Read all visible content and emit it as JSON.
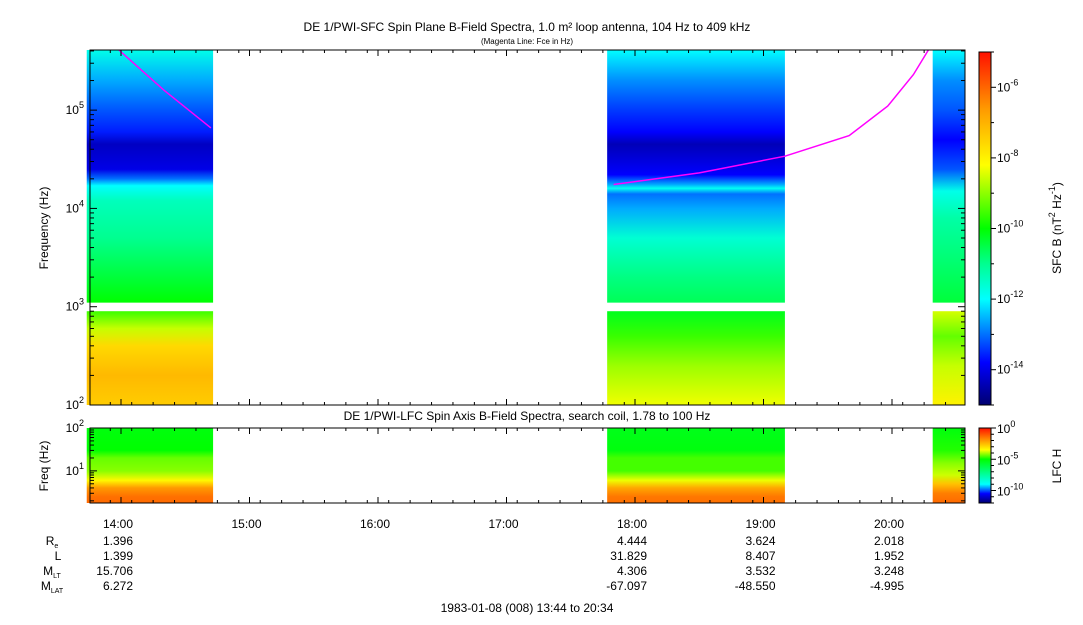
{
  "chart_data": [
    {
      "type": "heatmap",
      "title": "DE 1/PWI-SFC  Spin Plane B-Field Spectra, 1.0 m² loop antenna, 104 Hz to 409 kHz",
      "subtitle": "(Magenta Line: Fce in Hz)",
      "ylabel": "Frequency (Hz)",
      "yscale": "log",
      "ylim": [
        100,
        409000
      ],
      "y_ticks": [
        {
          "base": "10",
          "exp": "2",
          "value": 100
        },
        {
          "base": "10",
          "exp": "3",
          "value": 1000
        },
        {
          "base": "10",
          "exp": "4",
          "value": 10000
        },
        {
          "base": "10",
          "exp": "5",
          "value": 100000
        }
      ],
      "colorbar": {
        "label_main": "SFC B (nT",
        "label_sup1": "2",
        "label_mid": " Hz",
        "label_sup2": "-1",
        "label_end": ")",
        "range_log10": [
          -15,
          -5
        ],
        "ticks": [
          {
            "base": "10",
            "exp": "-6",
            "value": -6
          },
          {
            "base": "10",
            "exp": "-8",
            "value": -8
          },
          {
            "base": "10",
            "exp": "-10",
            "value": -10
          },
          {
            "base": "10",
            "exp": "-12",
            "value": -12
          },
          {
            "base": "10",
            "exp": "-14",
            "value": -14
          }
        ],
        "colors": [
          [
            -15,
            "#000070"
          ],
          [
            -13.8,
            "#0000ff"
          ],
          [
            -12,
            "#00ffff"
          ],
          [
            -11,
            "#00ff90"
          ],
          [
            -10,
            "#00ff00"
          ],
          [
            -8.2,
            "#ffff00"
          ],
          [
            -6.6,
            "#ff9900"
          ],
          [
            -5,
            "#ff1000"
          ]
        ]
      },
      "gap_band_hz": [
        900,
        1100
      ],
      "segments": [
        {
          "start": "13:44",
          "end": "14:43",
          "upper": [
            [
              409000,
              -11.8
            ],
            [
              200000,
              -12.6
            ],
            [
              100000,
              -13.2
            ],
            [
              60000,
              -13.6
            ],
            [
              45000,
              -14.3
            ],
            [
              25000,
              -14
            ],
            [
              20000,
              -13
            ],
            [
              17000,
              -12
            ],
            [
              12000,
              -11.4
            ],
            [
              5000,
              -11
            ],
            [
              2000,
              -10.4
            ],
            [
              1100,
              -10
            ]
          ],
          "lower": [
            [
              900,
              -9.6
            ],
            [
              600,
              -8.6
            ],
            [
              400,
              -7.6
            ],
            [
              200,
              -7.1
            ],
            [
              100,
              -7.4
            ]
          ]
        },
        {
          "start": "17:47",
          "end": "19:10",
          "upper": [
            [
              409000,
              -12
            ],
            [
              200000,
              -12.8
            ],
            [
              100000,
              -13.4
            ],
            [
              60000,
              -13.8
            ],
            [
              45000,
              -14.4
            ],
            [
              22000,
              -13.8
            ],
            [
              17500,
              -12.6
            ],
            [
              16000,
              -11.9
            ],
            [
              14000,
              -13
            ],
            [
              10000,
              -12.6
            ],
            [
              5000,
              -11.6
            ],
            [
              2000,
              -10.9
            ],
            [
              1100,
              -10.6
            ]
          ],
          "lower": [
            [
              900,
              -10.2
            ],
            [
              500,
              -9.6
            ],
            [
              250,
              -8.9
            ],
            [
              100,
              -8.3
            ]
          ]
        },
        {
          "start": "20:19",
          "end": "20:34",
          "upper": [
            [
              409000,
              -12
            ],
            [
              200000,
              -12.8
            ],
            [
              100000,
              -13.2
            ],
            [
              50000,
              -13.8
            ],
            [
              25000,
              -13.2
            ],
            [
              15000,
              -11.8
            ],
            [
              8000,
              -11.2
            ],
            [
              3000,
              -10.8
            ],
            [
              1100,
              -10.4
            ]
          ],
          "lower": [
            [
              900,
              -8.5
            ],
            [
              500,
              -9.3
            ],
            [
              250,
              -8.6
            ],
            [
              100,
              -8
            ]
          ]
        }
      ],
      "fce_line": {
        "color": "#ff00ff",
        "points": [
          [
            "13:59",
            409000
          ],
          [
            "14:20",
            160000
          ],
          [
            "14:42",
            66000
          ],
          null,
          [
            "17:50",
            17500
          ],
          [
            "18:30",
            23000
          ],
          [
            "19:10",
            34000
          ],
          [
            "19:40",
            55000
          ],
          [
            "19:58",
            110000
          ],
          [
            "20:10",
            230000
          ],
          [
            "20:17",
            409000
          ]
        ]
      }
    },
    {
      "type": "heatmap",
      "title": "DE 1/PWI-LFC  Spin Axis B-Field Spectra, search coil, 1.78 to 100 Hz",
      "ylabel": "Freq (Hz)",
      "yscale": "log",
      "ylim": [
        1.78,
        100
      ],
      "y_ticks": [
        {
          "base": "10",
          "exp": "1",
          "value": 10
        },
        {
          "base": "10",
          "exp": "2",
          "value": 100
        }
      ],
      "colorbar": {
        "label": "LFC H",
        "range_log10": [
          -12,
          0
        ],
        "ticks": [
          {
            "base": "10",
            "exp": "0",
            "value": 0
          },
          {
            "base": "10",
            "exp": "-5",
            "value": -5
          },
          {
            "base": "10",
            "exp": "-10",
            "value": -10
          }
        ],
        "colors": [
          [
            -12,
            "#000070"
          ],
          [
            -10.5,
            "#0000ff"
          ],
          [
            -9,
            "#00ffff"
          ],
          [
            -7,
            "#00ff80"
          ],
          [
            -5,
            "#00ff00"
          ],
          [
            -3.5,
            "#ffff00"
          ],
          [
            -2,
            "#ff9900"
          ],
          [
            0,
            "#ff1000"
          ]
        ]
      },
      "segments": [
        {
          "start": "13:44",
          "end": "14:43",
          "profile": [
            [
              100,
              -5.2
            ],
            [
              30,
              -5
            ],
            [
              20,
              -4.4
            ],
            [
              10,
              -4.2
            ],
            [
              6,
              -3.4
            ],
            [
              4,
              -2
            ],
            [
              2.5,
              -1.4
            ],
            [
              1.78,
              -1.3
            ]
          ]
        },
        {
          "start": "17:47",
          "end": "19:10",
          "profile": [
            [
              100,
              -5.4
            ],
            [
              30,
              -5.2
            ],
            [
              20,
              -4.6
            ],
            [
              10,
              -4.6
            ],
            [
              6,
              -3.6
            ],
            [
              4,
              -2.2
            ],
            [
              2.5,
              -1.5
            ],
            [
              1.78,
              -1.4
            ]
          ]
        },
        {
          "start": "20:19",
          "end": "20:34",
          "profile": [
            [
              100,
              -5.2
            ],
            [
              30,
              -4.8
            ],
            [
              15,
              -4.2
            ],
            [
              8,
              -3.8
            ],
            [
              5,
              -2.6
            ],
            [
              3,
              -1.6
            ],
            [
              1.78,
              -1.3
            ]
          ]
        }
      ]
    }
  ],
  "x_axis": {
    "range": [
      "13:44",
      "20:34"
    ],
    "ticks": [
      "14:00",
      "15:00",
      "16:00",
      "17:00",
      "18:00",
      "19:00",
      "20:00"
    ],
    "caption": "1983-01-08 (008) 13:44 to 20:34"
  },
  "ephemeris": [
    {
      "label": "R",
      "sub": "e",
      "values": [
        "1.396",
        "",
        "",
        "",
        "4.444",
        "3.624",
        "2.018"
      ]
    },
    {
      "label": "L",
      "sub": "",
      "values": [
        "1.399",
        "",
        "",
        "",
        "31.829",
        "8.407",
        "1.952"
      ]
    },
    {
      "label": "M",
      "sub": "LT",
      "values": [
        "15.706",
        "",
        "",
        "",
        "4.306",
        "3.532",
        "3.248"
      ]
    },
    {
      "label": "M",
      "sub": "LAT",
      "values": [
        "6.272",
        "",
        "",
        "",
        "-67.097",
        "-48.550",
        "-4.995"
      ]
    }
  ]
}
